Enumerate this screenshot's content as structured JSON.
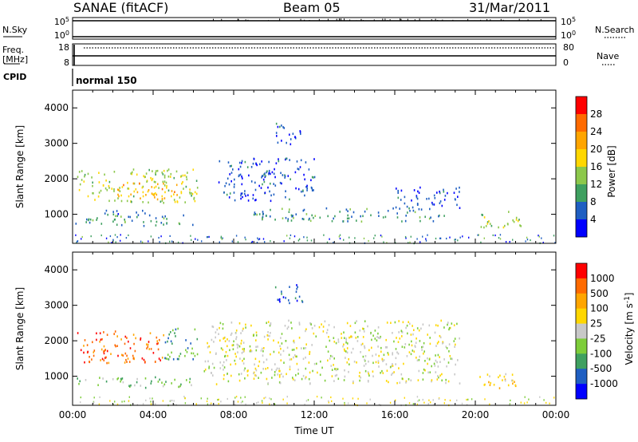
{
  "header": {
    "station": "SANAE (fitACF)",
    "beam": "Beam 05",
    "date": "31/Mar/2011"
  },
  "panels": {
    "nsky": {
      "label": "N.Sky",
      "ticks": [
        "10^5",
        "10^0"
      ],
      "right_label": "N.Search",
      "right_ticks": [
        "10^5",
        "10^0"
      ]
    },
    "freq": {
      "label_line1": "Freq.",
      "label_line2": "[MHz]",
      "ticks": [
        "18",
        "8"
      ],
      "right_label": "Nave",
      "right_ticks": [
        "80",
        "0"
      ]
    },
    "cpid": {
      "label": "CPID",
      "value": "normal 150"
    }
  },
  "chart_data": [
    {
      "type": "heatmap",
      "title": "",
      "xlabel": "",
      "ylabel": "Slant Range [km]",
      "xlim": [
        "00:00",
        "24:00"
      ],
      "ylim": [
        180,
        4500
      ],
      "yticks": [
        1000,
        2000,
        3000,
        4000
      ],
      "colorbar": {
        "label": "Power [dB]",
        "ticks": [
          "4",
          "8",
          "12",
          "16",
          "20",
          "24",
          "28"
        ],
        "range": [
          0,
          30
        ],
        "colors": [
          "#0000ff",
          "#1f5fc2",
          "#3fa060",
          "#8cc84b",
          "#ffd700",
          "#ffa500",
          "#ff6a00",
          "#ff0000"
        ]
      },
      "blobs": [
        {
          "t0": 0.1,
          "t1": 6.0,
          "r0": 700,
          "r1": 1000,
          "power": 9
        },
        {
          "t0": 1.2,
          "t1": 4.0,
          "r0": 980,
          "r1": 1150,
          "power": 7
        },
        {
          "t0": 0.2,
          "t1": 6.2,
          "r0": 1350,
          "r1": 2300,
          "power": 15
        },
        {
          "t0": 2.2,
          "t1": 5.2,
          "r0": 1450,
          "r1": 1900,
          "power": 21
        },
        {
          "t0": 8.8,
          "t1": 18.5,
          "r0": 820,
          "r1": 1200,
          "power": 9
        },
        {
          "t0": 16.0,
          "t1": 19.2,
          "r0": 1150,
          "r1": 1800,
          "power": 5
        },
        {
          "t0": 7.2,
          "t1": 12.0,
          "r0": 1400,
          "r1": 2600,
          "power": 5
        },
        {
          "t0": 10.0,
          "t1": 11.4,
          "r0": 3000,
          "r1": 3600,
          "power": 5
        },
        {
          "t0": 20.1,
          "t1": 22.3,
          "r0": 650,
          "r1": 1100,
          "power": 15
        }
      ]
    },
    {
      "type": "heatmap",
      "title": "",
      "xlabel": "Time UT",
      "ylabel": "Slant Range [km]",
      "xlim": [
        "00:00",
        "24:00"
      ],
      "xticks": [
        "00:00",
        "04:00",
        "08:00",
        "12:00",
        "16:00",
        "20:00",
        "00:00"
      ],
      "ylim": [
        180,
        4500
      ],
      "yticks": [
        1000,
        2000,
        3000,
        4000
      ],
      "colorbar": {
        "label": "Velocity [m s^-1]",
        "ticks": [
          "1000",
          "500",
          "100",
          "25",
          "-25",
          "-100",
          "-500",
          "-1000"
        ],
        "colors": [
          "#0000ff",
          "#1f5fc2",
          "#3fa060",
          "#7dcd3a",
          "#c8c8c8",
          "#ffd700",
          "#ffa500",
          "#ff6a00",
          "#ff0000"
        ]
      },
      "blobs": [
        {
          "t0": 0.1,
          "t1": 6.0,
          "r0": 700,
          "r1": 1000,
          "velocity_class": 3
        },
        {
          "t0": 0.2,
          "t1": 4.5,
          "r0": 1400,
          "r1": 2300,
          "velocity_class": 7
        },
        {
          "t0": 4.5,
          "t1": 6.2,
          "r0": 1500,
          "r1": 2400,
          "velocity_class": 2
        },
        {
          "t0": 6.5,
          "t1": 19.2,
          "r0": 800,
          "r1": 2600,
          "velocity_class": 4
        },
        {
          "t0": 10.0,
          "t1": 11.4,
          "r0": 3000,
          "r1": 3600,
          "velocity_class": 1
        },
        {
          "t0": 20.1,
          "t1": 22.3,
          "r0": 650,
          "r1": 1100,
          "velocity_class": 5
        }
      ]
    }
  ]
}
